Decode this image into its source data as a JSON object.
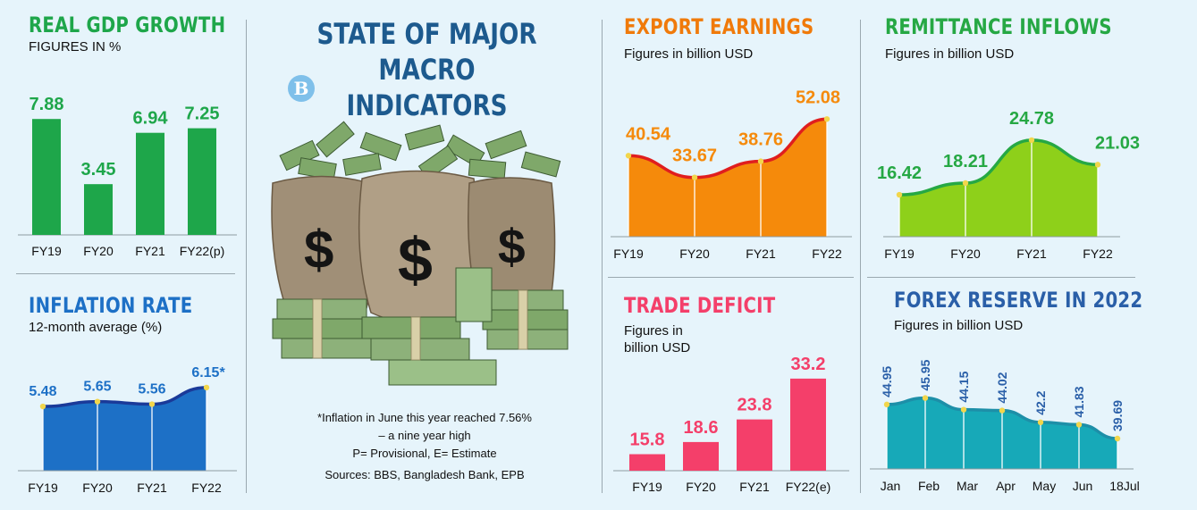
{
  "header": {
    "title_line1": "STATE OF MAJOR MACRO",
    "title_line2": "INDICATORS",
    "logo_letter": "B"
  },
  "notes": {
    "line1": "*Inflation in June this year reached 7.56%",
    "line2": "– a nine year high",
    "line3": "P= Provisional, E= Estimate",
    "line4": "Sources: BBS, Bangladesh Bank, EPB"
  },
  "colors": {
    "gdp": "#1ea64a",
    "inflation": "#1d70c6",
    "export": "#f58a0b",
    "export_line": "#e01e1e",
    "remittance": "#8ed01a",
    "remittance_line": "#26a844",
    "trade": "#f43f6a",
    "forex": "#17a9b8",
    "forex_text": "#2a5fa8",
    "center_title": "#1d5a8e"
  },
  "chart_data": [
    {
      "id": "gdp",
      "type": "bar",
      "title": "REAL GDP GROWTH",
      "subtitle": "FIGURES IN %",
      "categories": [
        "FY19",
        "FY20",
        "FY21",
        "FY22(p)"
      ],
      "values": [
        7.88,
        3.45,
        6.94,
        7.25
      ],
      "labels": [
        "7.88",
        "3.45",
        "6.94",
        "7.25"
      ],
      "ylim": [
        0,
        8.5
      ]
    },
    {
      "id": "inflation",
      "type": "area",
      "title": "INFLATION RATE",
      "subtitle": "12-month average (%)",
      "categories": [
        "FY19",
        "FY20",
        "FY21",
        "FY22"
      ],
      "values": [
        5.48,
        5.65,
        5.56,
        6.15
      ],
      "labels": [
        "5.48",
        "5.65",
        "5.56",
        "6.15*"
      ],
      "ylim": [
        3.2,
        6.4
      ]
    },
    {
      "id": "export",
      "type": "area",
      "title": "EXPORT EARNINGS",
      "subtitle": "Figures in billion USD",
      "categories": [
        "FY19",
        "FY20",
        "FY21",
        "FY22"
      ],
      "values": [
        40.54,
        33.67,
        38.76,
        52.08
      ],
      "labels": [
        "40.54",
        "33.67",
        "38.76",
        "52.08"
      ],
      "ylim": [
        15,
        53
      ]
    },
    {
      "id": "remittance",
      "type": "area",
      "title": "REMITTANCE INFLOWS",
      "subtitle": "Figures in billion USD",
      "categories": [
        "FY19",
        "FY20",
        "FY21",
        "FY22"
      ],
      "values": [
        16.42,
        18.21,
        24.78,
        21.03
      ],
      "labels": [
        "16.42",
        "18.21",
        "24.78",
        "21.03"
      ],
      "ylim": [
        10,
        26
      ]
    },
    {
      "id": "trade",
      "type": "bar",
      "title": "TRADE DEFICIT",
      "subtitle_line1": "Figures in",
      "subtitle_line2": "billion USD",
      "categories": [
        "FY19",
        "FY20",
        "FY21",
        "FY22(e)"
      ],
      "values": [
        15.8,
        18.6,
        23.8,
        33.2
      ],
      "labels": [
        "15.8",
        "18.6",
        "23.8",
        "33.2"
      ],
      "ylim": [
        12,
        34
      ]
    },
    {
      "id": "forex",
      "type": "area",
      "title": "FOREX RESERVE IN 2022",
      "subtitle": "Figures in billion USD",
      "categories": [
        "Jan",
        "Feb",
        "Mar",
        "Apr",
        "May",
        "Jun",
        "18Jul"
      ],
      "values": [
        44.95,
        45.95,
        44.15,
        44.02,
        42.2,
        41.83,
        39.69
      ],
      "labels": [
        "44.95",
        "45.95",
        "44.15",
        "44.02",
        "42.2",
        "41.83",
        "39.69"
      ],
      "ylim": [
        35,
        47
      ]
    }
  ]
}
